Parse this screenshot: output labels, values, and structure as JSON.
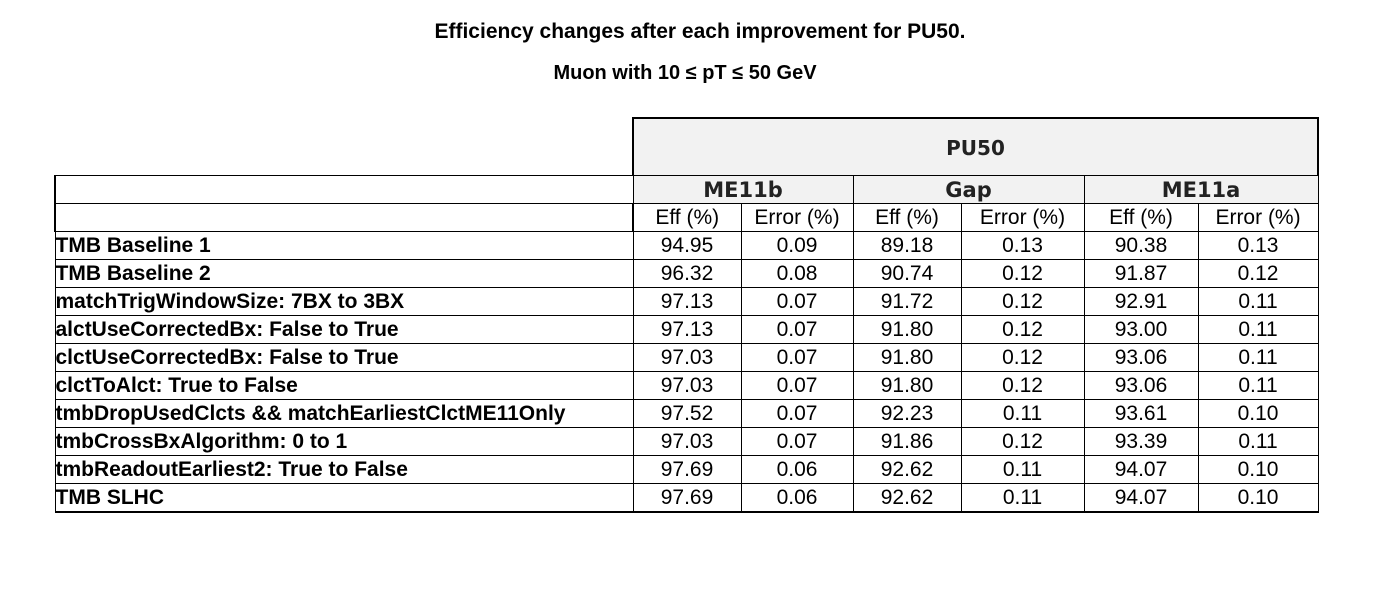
{
  "title": "Efficiency changes after each improvement for PU50.",
  "subtitle": "Muon with 10 ≤ pT ≤ 50  GeV",
  "table": {
    "top_header": "PU50",
    "groups": [
      "ME11b",
      "Gap",
      "ME11a"
    ],
    "sub_headers": [
      "Eff (%)",
      "Error (%)",
      "Eff (%)",
      "Error (%)",
      "Eff (%)",
      "Error (%)"
    ],
    "rows": [
      {
        "label": "TMB Baseline 1",
        "values": [
          "94.95",
          "0.09",
          "89.18",
          "0.13",
          "90.38",
          "0.13"
        ]
      },
      {
        "label": "TMB Baseline 2",
        "values": [
          "96.32",
          "0.08",
          "90.74",
          "0.12",
          "91.87",
          "0.12"
        ]
      },
      {
        "label": "matchTrigWindowSize: 7BX to 3BX",
        "values": [
          "97.13",
          "0.07",
          "91.72",
          "0.12",
          "92.91",
          "0.11"
        ]
      },
      {
        "label": "alctUseCorrectedBx: False to True",
        "values": [
          "97.13",
          "0.07",
          "91.80",
          "0.12",
          "93.00",
          "0.11"
        ]
      },
      {
        "label": "clctUseCorrectedBx: False to True",
        "values": [
          "97.03",
          "0.07",
          "91.80",
          "0.12",
          "93.06",
          "0.11"
        ]
      },
      {
        "label": "clctToAlct: True to False",
        "values": [
          "97.03",
          "0.07",
          "91.80",
          "0.12",
          "93.06",
          "0.11"
        ]
      },
      {
        "label": "tmbDropUsedClcts && matchEarliestClctME11Only",
        "values": [
          "97.52",
          "0.07",
          "92.23",
          "0.11",
          "93.61",
          "0.10"
        ]
      },
      {
        "label": "tmbCrossBxAlgorithm: 0 to 1",
        "values": [
          "97.03",
          "0.07",
          "91.86",
          "0.12",
          "93.39",
          "0.11"
        ]
      },
      {
        "label": "tmbReadoutEarliest2: True to False",
        "values": [
          "97.69",
          "0.06",
          "92.62",
          "0.11",
          "94.07",
          "0.10"
        ]
      },
      {
        "label": "TMB SLHC",
        "values": [
          "97.69",
          "0.06",
          "92.62",
          "0.11",
          "94.07",
          "0.10"
        ]
      }
    ]
  }
}
